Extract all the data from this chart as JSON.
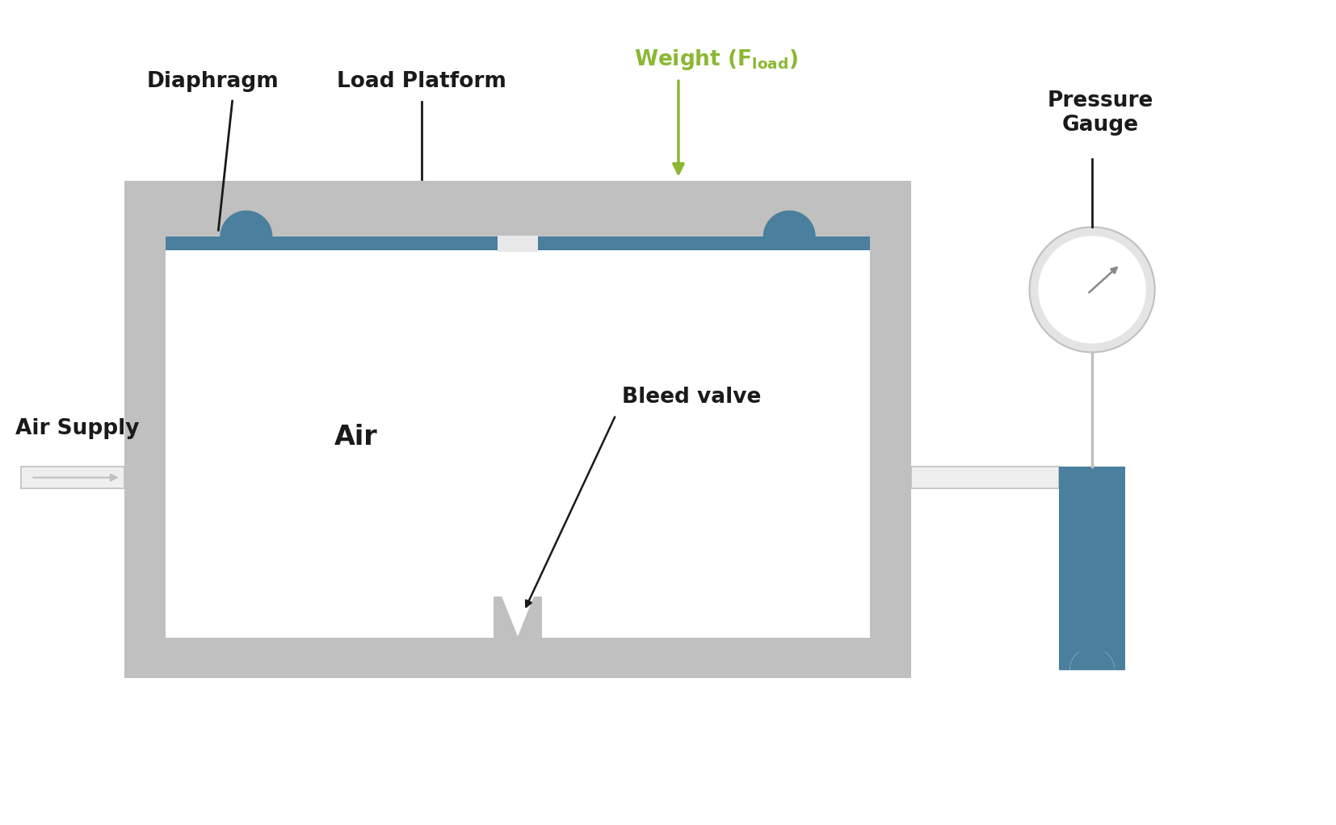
{
  "bg_color": "#ffffff",
  "gray_dark": "#c0c0c0",
  "gray_light": "#efefef",
  "gray_mid": "#d0d0d0",
  "blue_teal": "#4a7f9e",
  "green_arrow": "#8ab832",
  "white": "#ffffff",
  "black": "#1a1a1a",
  "diaphragm_label": "Diaphragm",
  "load_platform_label": "Load Platform",
  "air_supply_label": "Air Supply",
  "air_label": "Air",
  "bleed_valve_label": "Bleed valve",
  "pressure_gauge_label": "Pressure\nGauge",
  "figw": 16.54,
  "figh": 10.22
}
